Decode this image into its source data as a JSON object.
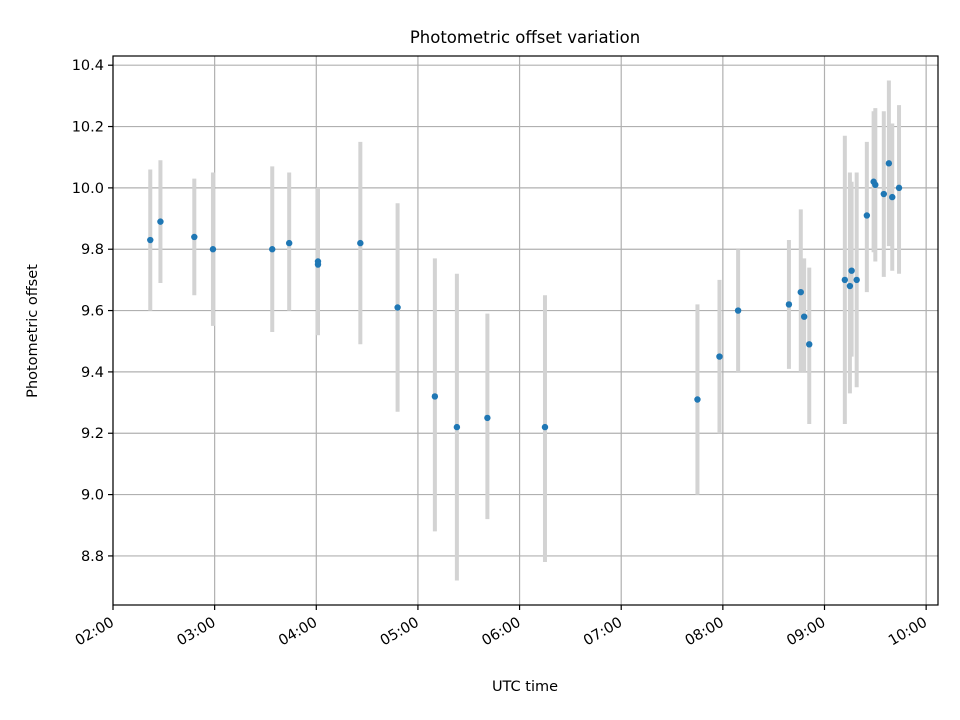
{
  "chart_data": {
    "type": "scatter",
    "title": "Photometric offset variation",
    "xlabel": "UTC time",
    "ylabel": "Photometric offset",
    "xlim": [
      "02:00",
      "10:07"
    ],
    "ylim": [
      8.64,
      10.43
    ],
    "x_ticks": [
      "02:00",
      "03:00",
      "04:00",
      "05:00",
      "06:00",
      "07:00",
      "08:00",
      "09:00",
      "10:00"
    ],
    "y_ticks": [
      "8.8",
      "9.0",
      "9.2",
      "9.4",
      "9.6",
      "9.8",
      "10.0",
      "10.2",
      "10.4"
    ],
    "grid": true,
    "colors": {
      "points": "#1f77b4",
      "error_bars": "#d3d3d3",
      "grid": "#b0b0b0"
    },
    "series": [
      {
        "points": [
          {
            "time": "02:22",
            "y": 9.83,
            "err_low": 9.6,
            "err_high": 10.06
          },
          {
            "time": "02:28",
            "y": 9.89,
            "err_low": 9.69,
            "err_high": 10.09
          },
          {
            "time": "02:48",
            "y": 9.84,
            "err_low": 9.65,
            "err_high": 10.03
          },
          {
            "time": "02:59",
            "y": 9.8,
            "err_low": 9.55,
            "err_high": 10.05
          },
          {
            "time": "03:34",
            "y": 9.8,
            "err_low": 9.53,
            "err_high": 10.07
          },
          {
            "time": "03:44",
            "y": 9.82,
            "err_low": 9.6,
            "err_high": 10.05
          },
          {
            "time": "04:01",
            "y": 9.76,
            "err_low": 9.52,
            "err_high": 10.0
          },
          {
            "time": "04:01",
            "y": 9.75,
            "err_low": 9.52,
            "err_high": 10.0
          },
          {
            "time": "04:26",
            "y": 9.82,
            "err_low": 9.49,
            "err_high": 10.15
          },
          {
            "time": "04:48",
            "y": 9.61,
            "err_low": 9.27,
            "err_high": 9.95
          },
          {
            "time": "05:10",
            "y": 9.32,
            "err_low": 8.88,
            "err_high": 9.77
          },
          {
            "time": "05:23",
            "y": 9.22,
            "err_low": 8.72,
            "err_high": 9.72
          },
          {
            "time": "05:41",
            "y": 9.25,
            "err_low": 8.92,
            "err_high": 9.59
          },
          {
            "time": "06:15",
            "y": 9.22,
            "err_low": 8.78,
            "err_high": 9.65
          },
          {
            "time": "07:45",
            "y": 9.31,
            "err_low": 9.0,
            "err_high": 9.62
          },
          {
            "time": "07:58",
            "y": 9.45,
            "err_low": 9.2,
            "err_high": 9.7
          },
          {
            "time": "08:09",
            "y": 9.6,
            "err_low": 9.4,
            "err_high": 9.8
          },
          {
            "time": "08:39",
            "y": 9.62,
            "err_low": 9.41,
            "err_high": 9.83
          },
          {
            "time": "08:46",
            "y": 9.66,
            "err_low": 9.4,
            "err_high": 9.93
          },
          {
            "time": "08:48",
            "y": 9.58,
            "err_low": 9.4,
            "err_high": 9.77
          },
          {
            "time": "08:51",
            "y": 9.49,
            "err_low": 9.23,
            "err_high": 9.74
          },
          {
            "time": "09:12",
            "y": 9.7,
            "err_low": 9.23,
            "err_high": 10.17
          },
          {
            "time": "09:15",
            "y": 9.68,
            "err_low": 9.33,
            "err_high": 10.05
          },
          {
            "time": "09:16",
            "y": 9.73,
            "err_low": 9.45,
            "err_high": 10.02
          },
          {
            "time": "09:19",
            "y": 9.7,
            "err_low": 9.35,
            "err_high": 10.05
          },
          {
            "time": "09:25",
            "y": 9.91,
            "err_low": 9.66,
            "err_high": 10.15
          },
          {
            "time": "09:29",
            "y": 10.02,
            "err_low": 9.79,
            "err_high": 10.25
          },
          {
            "time": "09:30",
            "y": 10.01,
            "err_low": 9.76,
            "err_high": 10.26
          },
          {
            "time": "09:35",
            "y": 9.98,
            "err_low": 9.71,
            "err_high": 10.25
          },
          {
            "time": "09:38",
            "y": 10.08,
            "err_low": 9.81,
            "err_high": 10.35
          },
          {
            "time": "09:40",
            "y": 9.97,
            "err_low": 9.73,
            "err_high": 10.21
          },
          {
            "time": "09:44",
            "y": 10.0,
            "err_low": 9.72,
            "err_high": 10.27
          }
        ]
      }
    ]
  }
}
